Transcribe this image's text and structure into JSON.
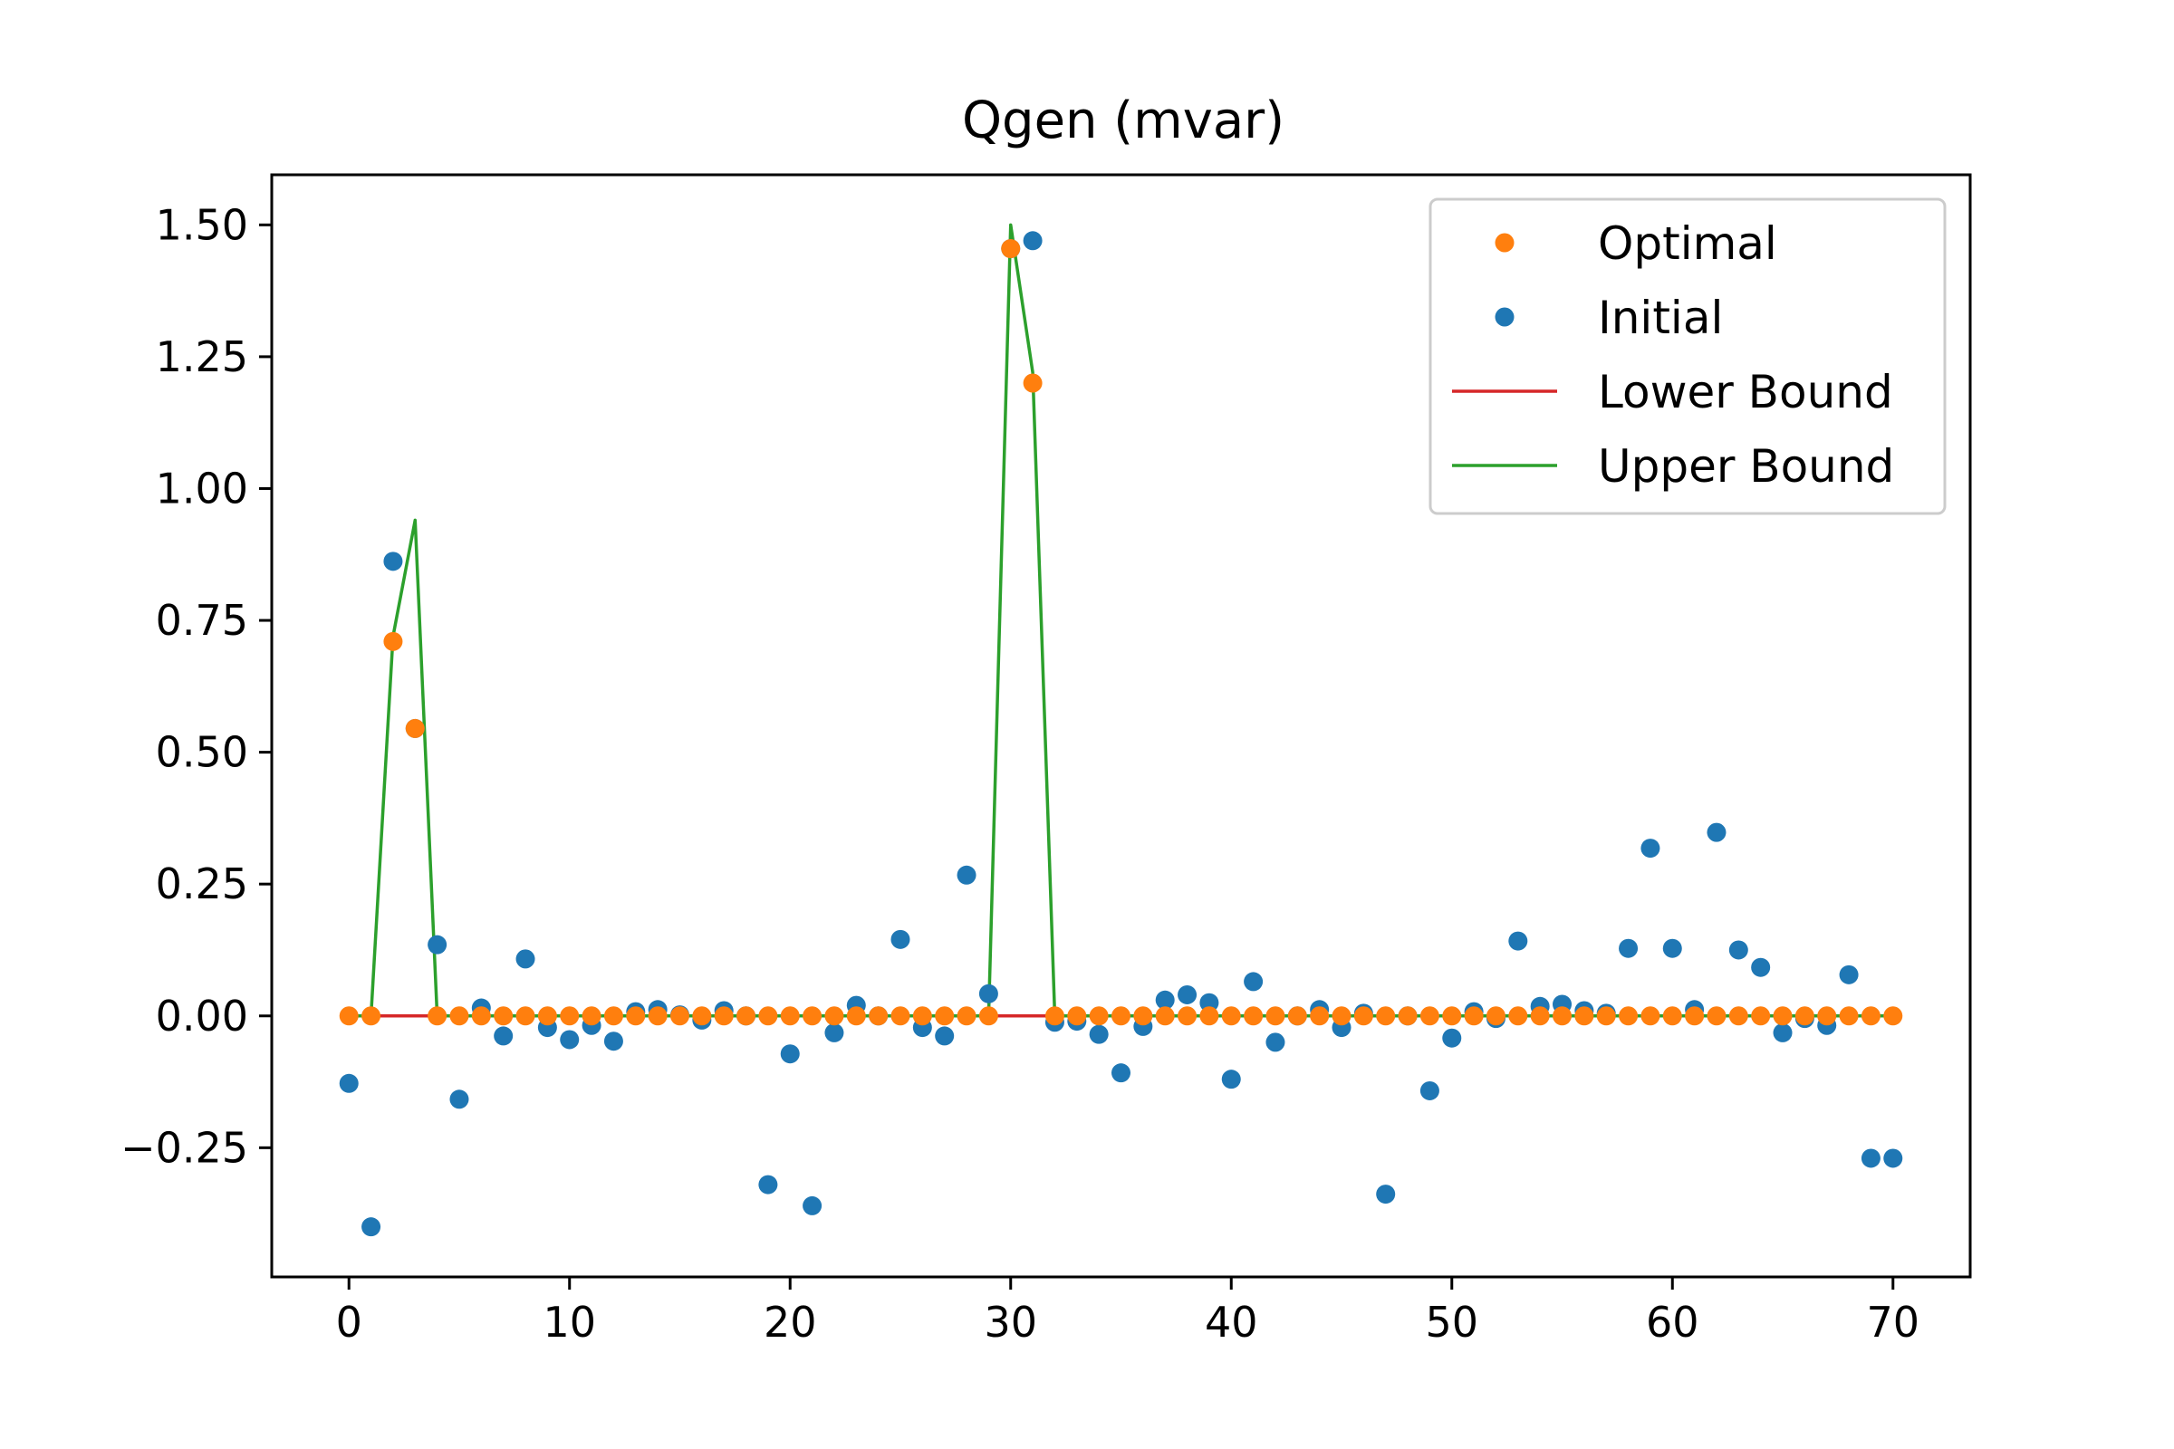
{
  "chart_data": {
    "type": "scatter",
    "title": "Qgen (mvar)",
    "xlabel": "",
    "ylabel": "",
    "xlim": [
      -3.5,
      73.5
    ],
    "ylim": [
      -0.495,
      1.595
    ],
    "xticks": [
      0,
      10,
      20,
      30,
      40,
      50,
      60,
      70
    ],
    "yticks": [
      -0.25,
      0.0,
      0.25,
      0.5,
      0.75,
      1.0,
      1.25,
      1.5
    ],
    "xtick_labels": [
      "0",
      "10",
      "20",
      "30",
      "40",
      "50",
      "60",
      "70"
    ],
    "ytick_labels": [
      "−0.25",
      "0.00",
      "0.25",
      "0.50",
      "0.75",
      "1.00",
      "1.25",
      "1.50"
    ],
    "grid": false,
    "legend_position": "top-right",
    "x": [
      0,
      1,
      2,
      3,
      4,
      5,
      6,
      7,
      8,
      9,
      10,
      11,
      12,
      13,
      14,
      15,
      16,
      17,
      18,
      19,
      20,
      21,
      22,
      23,
      24,
      25,
      26,
      27,
      28,
      29,
      30,
      31,
      32,
      33,
      34,
      35,
      36,
      37,
      38,
      39,
      40,
      41,
      42,
      43,
      44,
      45,
      46,
      47,
      48,
      49,
      50,
      51,
      52,
      53,
      54,
      55,
      56,
      57,
      58,
      59,
      60,
      61,
      62,
      63,
      64,
      65,
      66,
      67,
      68,
      69,
      70
    ],
    "series": [
      {
        "name": "Optimal",
        "kind": "scatter",
        "color": "#ff7f0e",
        "values": [
          0,
          0,
          0.71,
          0.545,
          0,
          0,
          0,
          0,
          0,
          0,
          0,
          0,
          0,
          0,
          0,
          0,
          0,
          0,
          0,
          0,
          0,
          0,
          0,
          0,
          0,
          0,
          0,
          0,
          0,
          0,
          1.455,
          1.2,
          0,
          0,
          0,
          0,
          0,
          0,
          0,
          0,
          0,
          0,
          0,
          0,
          0,
          0,
          0,
          0,
          0,
          0,
          0,
          0,
          0,
          0,
          0,
          0,
          0,
          0,
          0,
          0,
          0,
          0,
          0,
          0,
          0,
          0,
          0,
          0,
          0,
          0,
          0
        ]
      },
      {
        "name": "Initial",
        "kind": "scatter",
        "color": "#1f77b4",
        "values": [
          -0.128,
          -0.4,
          0.862,
          0.545,
          0.135,
          -0.158,
          0.015,
          -0.038,
          0.108,
          -0.022,
          -0.045,
          -0.018,
          -0.048,
          0.008,
          0.012,
          0.002,
          -0.008,
          0.01,
          0.0,
          -0.32,
          -0.072,
          -0.36,
          -0.032,
          0.02,
          0.0,
          0.145,
          -0.022,
          -0.038,
          0.267,
          0.042,
          1.455,
          1.47,
          -0.012,
          -0.01,
          -0.035,
          -0.108,
          -0.02,
          0.03,
          0.04,
          0.025,
          -0.12,
          0.065,
          -0.05,
          0.0,
          0.012,
          -0.022,
          0.005,
          -0.338,
          0.0,
          -0.142,
          -0.042,
          0.008,
          -0.005,
          0.142,
          0.018,
          0.022,
          0.01,
          0.005,
          0.128,
          0.318,
          0.128,
          0.012,
          0.348,
          0.125,
          0.092,
          -0.032,
          -0.005,
          -0.018,
          0.078,
          -0.27,
          -0.27
        ]
      },
      {
        "name": "Lower Bound",
        "kind": "line",
        "color": "#d62728",
        "values": [
          0,
          0,
          0,
          0,
          0,
          0,
          0,
          0,
          0,
          0,
          0,
          0,
          0,
          0,
          0,
          0,
          0,
          0,
          0,
          0,
          0,
          0,
          0,
          0,
          0,
          0,
          0,
          0,
          0,
          0,
          0,
          0,
          0,
          0,
          0,
          0,
          0,
          0,
          0,
          0,
          0,
          0,
          0,
          0,
          0,
          0,
          0,
          0,
          0,
          0,
          0,
          0,
          0,
          0,
          0,
          0,
          0,
          0,
          0,
          0,
          0,
          0,
          0,
          0,
          0,
          0,
          0,
          0,
          0,
          0,
          0
        ]
      },
      {
        "name": "Upper Bound",
        "kind": "line",
        "color": "#2ca02c",
        "values": [
          0,
          0,
          0.72,
          0.94,
          0,
          0,
          0,
          0,
          0,
          0,
          0,
          0,
          0,
          0,
          0,
          0,
          0,
          0,
          0,
          0,
          0,
          0,
          0,
          0,
          0,
          0,
          0,
          0,
          0,
          0,
          1.5,
          1.22,
          0,
          0,
          0,
          0,
          0,
          0,
          0,
          0,
          0,
          0,
          0,
          0,
          0,
          0,
          0,
          0,
          0,
          0,
          0,
          0,
          0,
          0,
          0,
          0,
          0,
          0,
          0,
          0,
          0,
          0,
          0,
          0,
          0,
          0,
          0,
          0,
          0,
          0,
          0
        ]
      }
    ],
    "legend_order": [
      0,
      1,
      2,
      3
    ]
  }
}
